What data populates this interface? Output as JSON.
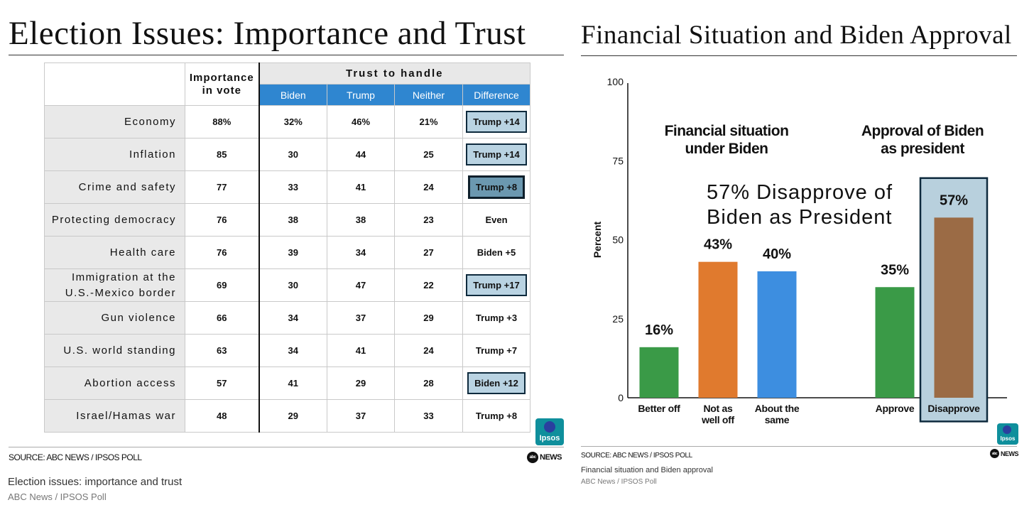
{
  "left": {
    "title": "Election Issues: Importance and Trust",
    "table": {
      "importance_header": "Importance in vote",
      "trust_header": "Trust to handle",
      "columns": [
        "Biden",
        "Trump",
        "Neither",
        "Difference"
      ],
      "rows": [
        {
          "issue": "Economy",
          "importance": "88%",
          "biden": "32%",
          "trump": "46%",
          "neither": "21%",
          "difference": "Trump +14",
          "highlight": "box"
        },
        {
          "issue": "Inflation",
          "importance": "85",
          "biden": "30",
          "trump": "44",
          "neither": "25",
          "difference": "Trump +14",
          "highlight": "box"
        },
        {
          "issue": "Crime and safety",
          "importance": "77",
          "biden": "33",
          "trump": "41",
          "neither": "24",
          "difference": "Trump +8",
          "highlight": "dark"
        },
        {
          "issue": "Protecting democracy",
          "importance": "76",
          "biden": "38",
          "trump": "38",
          "neither": "23",
          "difference": "Even",
          "highlight": "none"
        },
        {
          "issue": "Health care",
          "importance": "76",
          "biden": "39",
          "trump": "34",
          "neither": "27",
          "difference": "Biden +5",
          "highlight": "none"
        },
        {
          "issue": "Immigration at the U.S.-Mexico border",
          "importance": "69",
          "biden": "30",
          "trump": "47",
          "neither": "22",
          "difference": "Trump +17",
          "highlight": "box"
        },
        {
          "issue": "Gun violence",
          "importance": "66",
          "biden": "34",
          "trump": "37",
          "neither": "29",
          "difference": "Trump +3",
          "highlight": "none"
        },
        {
          "issue": "U.S. world standing",
          "importance": "63",
          "biden": "34",
          "trump": "41",
          "neither": "24",
          "difference": "Trump +7",
          "highlight": "none"
        },
        {
          "issue": "Abortion access",
          "importance": "57",
          "biden": "41",
          "trump": "29",
          "neither": "28",
          "difference": "Biden +12",
          "highlight": "box"
        },
        {
          "issue": "Israel/Hamas war",
          "importance": "48",
          "biden": "29",
          "trump": "37",
          "neither": "33",
          "difference": "Trump +8",
          "highlight": "none"
        }
      ]
    },
    "source": "SOURCE: ABC NEWS / IPSOS POLL",
    "caption": "Election issues: importance and trust",
    "subcaption": "ABC News / IPSOS Poll"
  },
  "right": {
    "title": "Financial Situation and Biden Approval",
    "source": "SOURCE: ABC NEWS / IPSOS POLL",
    "caption": "Financial situation and Biden approval",
    "subcaption": "ABC News / IPSOS Poll"
  },
  "logos": {
    "ipsos": "Ipsos",
    "abc_news": "NEWS",
    "abc": "abc"
  },
  "chart_data": {
    "type": "bar",
    "ylabel": "Percent",
    "ylim": [
      0,
      100
    ],
    "yticks": [
      0,
      25,
      50,
      75,
      100
    ],
    "annotation": "57% Disapprove of Biden as President",
    "groups": [
      {
        "title": "Financial situation under Biden",
        "categories": [
          "Better off",
          "Not as well off",
          "About the same"
        ],
        "values": [
          16,
          43,
          40
        ],
        "labels": [
          "16%",
          "43%",
          "40%"
        ],
        "colors": [
          "#3a9a47",
          "#e07a2e",
          "#3d8ee0"
        ]
      },
      {
        "title": "Approval of Biden as president",
        "categories": [
          "Approve",
          "Disapprove"
        ],
        "values": [
          35,
          57
        ],
        "labels": [
          "35%",
          "57%"
        ],
        "colors": [
          "#3a9a47",
          "#9b6b45"
        ],
        "highlight": "Disapprove"
      }
    ],
    "colors": {
      "highlight_fill": "#b8d0dd",
      "highlight_border": "#0e2a3d"
    }
  }
}
